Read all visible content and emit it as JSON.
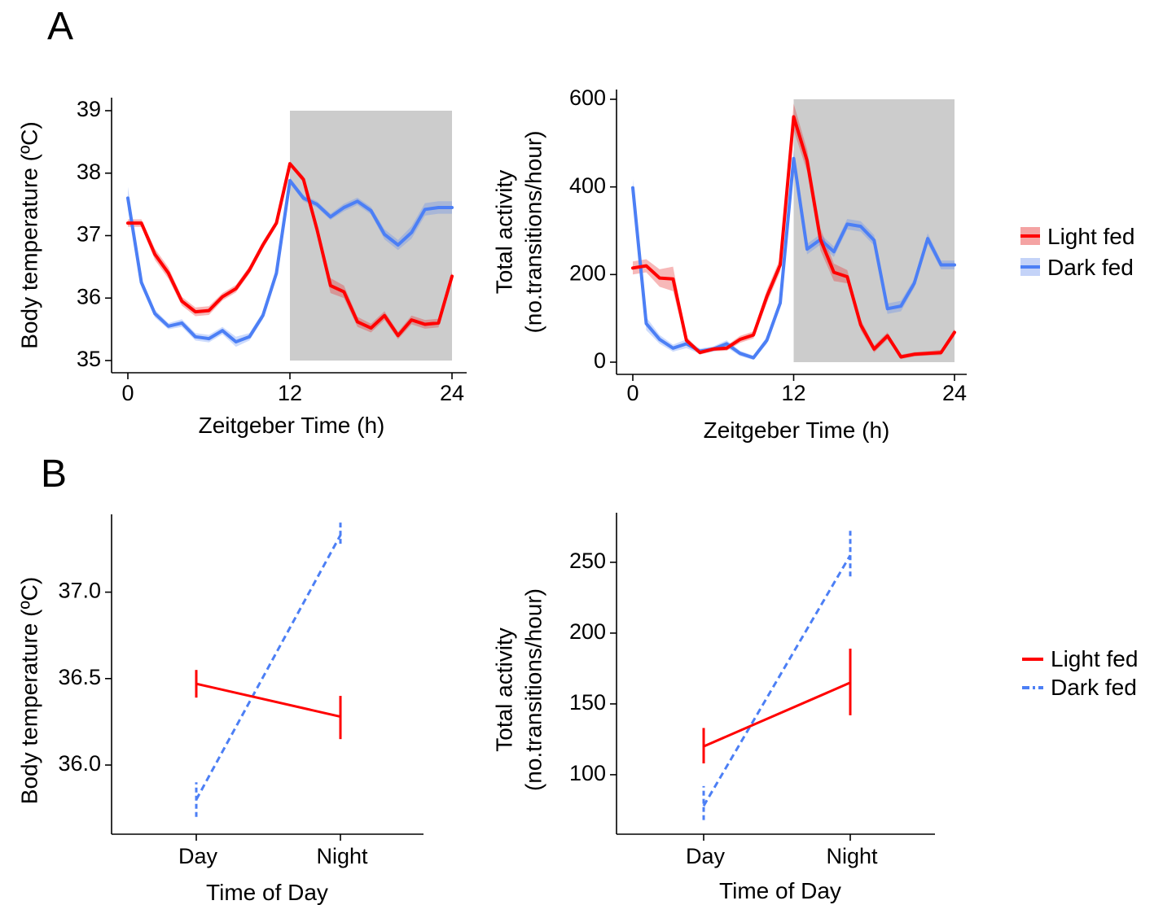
{
  "panel_labels": {
    "a": "A",
    "b": "B"
  },
  "colors": {
    "light_fed": "#ff0000",
    "dark_fed": "#4c7ff5",
    "dark_phase": "#cccccc"
  },
  "legend": {
    "light_fed": "Light fed",
    "dark_fed": "Dark fed"
  },
  "chart_data": [
    {
      "id": "A-left",
      "type": "line",
      "title": "",
      "xlabel": "Zeitgeber Time (h)",
      "ylabel": "Body temperature (ºC)",
      "xlim": [
        0,
        24
      ],
      "ylim": [
        35,
        39
      ],
      "xticks": [
        0,
        12,
        24
      ],
      "yticks": [
        35,
        36,
        37,
        38,
        39
      ],
      "shaded_interval": [
        12,
        24
      ],
      "x": [
        0,
        1,
        2,
        3,
        4,
        5,
        6,
        7,
        8,
        9,
        10,
        11,
        12,
        13,
        14,
        15,
        16,
        17,
        18,
        19,
        20,
        21,
        22,
        23,
        24
      ],
      "series": [
        {
          "name": "Light fed",
          "values": [
            37.2,
            37.2,
            36.7,
            36.4,
            35.95,
            35.78,
            35.8,
            36.02,
            36.15,
            36.45,
            36.85,
            37.2,
            38.15,
            37.9,
            37.1,
            36.2,
            36.1,
            35.62,
            35.52,
            35.72,
            35.4,
            35.65,
            35.58,
            35.6,
            36.35
          ],
          "se": [
            0.06,
            0.06,
            0.09,
            0.09,
            0.07,
            0.07,
            0.07,
            0.06,
            0.06,
            0.06,
            0.06,
            0.05,
            0.04,
            0.05,
            0.09,
            0.12,
            0.1,
            0.08,
            0.07,
            0.07,
            0.06,
            0.07,
            0.07,
            0.07,
            0.07
          ]
        },
        {
          "name": "Dark fed",
          "values": [
            37.6,
            36.25,
            35.75,
            35.55,
            35.6,
            35.38,
            35.35,
            35.48,
            35.3,
            35.38,
            35.72,
            36.4,
            37.88,
            37.6,
            37.5,
            37.3,
            37.45,
            37.55,
            37.4,
            37.02,
            36.85,
            37.05,
            37.42,
            37.45,
            37.45
          ],
          "se": [
            0.18,
            0.07,
            0.06,
            0.05,
            0.06,
            0.06,
            0.06,
            0.06,
            0.08,
            0.06,
            0.06,
            0.07,
            0.05,
            0.05,
            0.05,
            0.05,
            0.06,
            0.06,
            0.06,
            0.08,
            0.08,
            0.1,
            0.1,
            0.1,
            0.1
          ]
        }
      ]
    },
    {
      "id": "A-right",
      "type": "line",
      "title": "",
      "xlabel": "Zeitgeber Time (h)",
      "ylabel_lines": [
        "Total activity",
        "(no.transitions/hour)"
      ],
      "xlim": [
        0,
        24
      ],
      "ylim": [
        0,
        600
      ],
      "xticks": [
        0,
        12,
        24
      ],
      "yticks": [
        0,
        200,
        400,
        600
      ],
      "shaded_interval": [
        12,
        24
      ],
      "x": [
        0,
        1,
        2,
        3,
        4,
        5,
        6,
        7,
        8,
        9,
        10,
        11,
        12,
        13,
        14,
        15,
        16,
        17,
        18,
        19,
        20,
        21,
        22,
        23,
        24
      ],
      "series": [
        {
          "name": "Light fed",
          "values": [
            215,
            220,
            192,
            190,
            50,
            22,
            30,
            32,
            52,
            62,
            150,
            222,
            560,
            460,
            280,
            205,
            195,
            85,
            30,
            60,
            12,
            18,
            20,
            22,
            68
          ],
          "se": [
            15,
            15,
            20,
            28,
            8,
            5,
            5,
            6,
            8,
            8,
            15,
            15,
            30,
            25,
            25,
            20,
            15,
            12,
            8,
            8,
            5,
            5,
            5,
            6,
            8
          ]
        },
        {
          "name": "Dark fed",
          "values": [
            398,
            88,
            52,
            32,
            42,
            25,
            30,
            42,
            20,
            10,
            50,
            135,
            465,
            258,
            280,
            252,
            315,
            310,
            278,
            122,
            128,
            180,
            282,
            222,
            222
          ],
          "se": [
            20,
            15,
            10,
            8,
            10,
            6,
            6,
            8,
            6,
            5,
            8,
            10,
            20,
            12,
            12,
            12,
            12,
            12,
            12,
            12,
            12,
            10,
            12,
            10,
            10
          ]
        }
      ]
    },
    {
      "id": "B-left",
      "type": "line",
      "title": "",
      "xlabel": "Time of Day",
      "ylabel": "Body temperature (ºC)",
      "categories": [
        "Day",
        "Night"
      ],
      "ylim": [
        35.6,
        37.45
      ],
      "yticks": [
        "36.0",
        "36.5",
        "37.0"
      ],
      "series": [
        {
          "name": "Light fed",
          "values": [
            36.47,
            36.28
          ],
          "err_lo": [
            36.39,
            36.15
          ],
          "err_hi": [
            36.55,
            36.4
          ]
        },
        {
          "name": "Dark fed",
          "values": [
            35.8,
            37.33
          ],
          "err_lo": [
            35.7,
            37.28
          ],
          "err_hi": [
            35.9,
            37.42
          ]
        }
      ]
    },
    {
      "id": "B-right",
      "type": "line",
      "title": "",
      "xlabel": "Time of Day",
      "ylabel_lines": [
        "Total activity",
        "(no.transitions/hour)"
      ],
      "categories": [
        "Day",
        "Night"
      ],
      "ylim": [
        58,
        285
      ],
      "yticks": [
        100,
        150,
        200,
        250
      ],
      "series": [
        {
          "name": "Light fed",
          "values": [
            120,
            165
          ],
          "err_lo": [
            108,
            142
          ],
          "err_hi": [
            133,
            189
          ]
        },
        {
          "name": "Dark fed",
          "values": [
            78,
            255
          ],
          "err_lo": [
            68,
            240
          ],
          "err_hi": [
            92,
            273
          ]
        }
      ]
    }
  ]
}
